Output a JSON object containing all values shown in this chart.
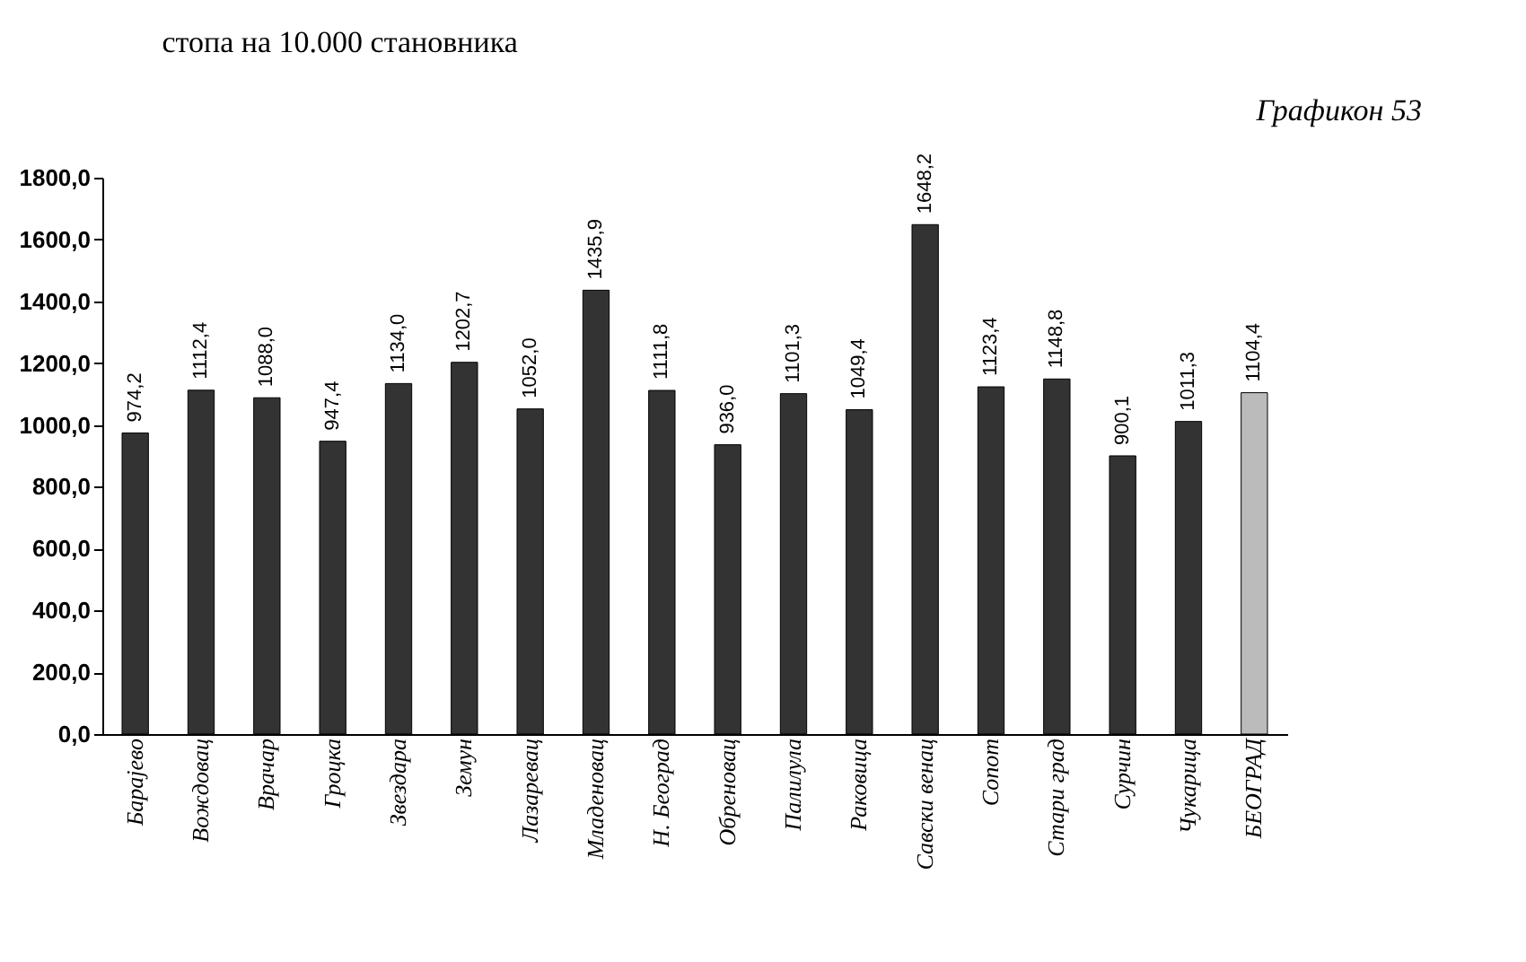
{
  "chart_data": {
    "type": "bar",
    "title": "стопа на 10.000 становника",
    "annotations": [
      "Графикон 53"
    ],
    "categories": [
      "Барајево",
      "Вождовац",
      "Врачар",
      "Гроцка",
      "Звездара",
      "Земун",
      "Лазаревац",
      "Младеновац",
      "Н. Београд",
      "Обреновац",
      "Палилула",
      "Раковица",
      "Савски венац",
      "Сопот",
      "Стари град",
      "Сурчин",
      "Чукарица",
      "БЕОГРАД"
    ],
    "values": [
      974.2,
      1112.4,
      1088.0,
      947.4,
      1134.0,
      1202.7,
      1052.0,
      1435.9,
      1111.8,
      936.0,
      1101.3,
      1049.4,
      1648.2,
      1123.4,
      1148.8,
      900.1,
      1011.3,
      1104.4
    ],
    "value_labels": [
      "974,2",
      "1112,4",
      "1088,0",
      "947,4",
      "1134,0",
      "1202,7",
      "1052,0",
      "1435,9",
      "1111,8",
      "936,0",
      "1101,3",
      "1049,4",
      "1648,2",
      "1123,4",
      "1148,8",
      "900,1",
      "1011,3",
      "1104,4"
    ],
    "colors": [
      "#333333",
      "#333333",
      "#333333",
      "#333333",
      "#333333",
      "#333333",
      "#333333",
      "#333333",
      "#333333",
      "#333333",
      "#333333",
      "#333333",
      "#333333",
      "#333333",
      "#333333",
      "#333333",
      "#333333",
      "#bbbbbb"
    ],
    "ylim": [
      0,
      1800
    ],
    "yticks": [
      {
        "value": 0,
        "label": "0,0"
      },
      {
        "value": 200,
        "label": "200,0"
      },
      {
        "value": 400,
        "label": "400,0"
      },
      {
        "value": 600,
        "label": "600,0"
      },
      {
        "value": 800,
        "label": "800,0"
      },
      {
        "value": 1000,
        "label": "1000,0"
      },
      {
        "value": 1200,
        "label": "1200,0"
      },
      {
        "value": 1400,
        "label": "1400,0"
      },
      {
        "value": 1600,
        "label": "1600,0"
      },
      {
        "value": 1800,
        "label": "1800,0"
      }
    ],
    "grid": false
  }
}
